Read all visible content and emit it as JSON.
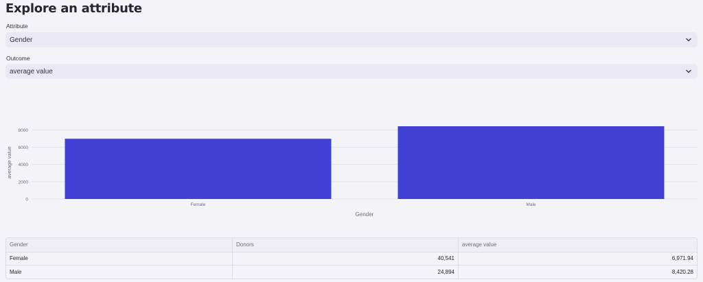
{
  "page_title": "Explore an attribute",
  "attribute": {
    "label": "Attribute",
    "value": "Gender"
  },
  "outcome": {
    "label": "Outcome",
    "value": "average value"
  },
  "chart_data": {
    "type": "bar",
    "categories": [
      "Female",
      "Male"
    ],
    "values": [
      6971.94,
      8420.28
    ],
    "xlabel": "Gender",
    "ylabel": "average value",
    "yticks": [
      0,
      2000,
      4000,
      6000,
      8000
    ],
    "ylim": [
      0,
      8420.28
    ],
    "grid": true,
    "bar_color": "#4040d2"
  },
  "table": {
    "columns": [
      "Gender",
      "Donors",
      "average value"
    ],
    "rows": [
      [
        "Female",
        "40,541",
        "6,971.94"
      ],
      [
        "Male",
        "24,894",
        "8,420.28"
      ]
    ]
  },
  "colors": {
    "accent": "#4040d2",
    "select_bg": "#e9e8f3",
    "page_bg": "#f4f3f8"
  }
}
